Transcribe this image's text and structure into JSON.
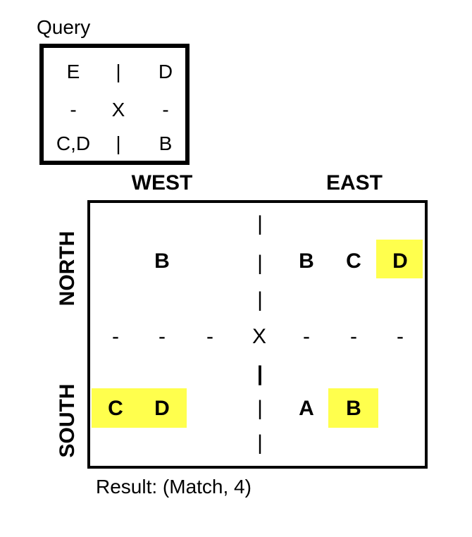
{
  "query": {
    "title": "Query",
    "rows": [
      [
        "E",
        "|",
        "D"
      ],
      [
        "-",
        "X",
        "-"
      ],
      [
        "C,D",
        "|",
        "B"
      ]
    ]
  },
  "board": {
    "west_label": "WEST",
    "east_label": "EAST",
    "north_label": "NORTH",
    "south_label": "SOUTH",
    "north_row": {
      "west": [
        "B"
      ],
      "east": [
        "B",
        "C",
        "D"
      ]
    },
    "middle_row": [
      "-",
      "-",
      "-",
      "X",
      "-",
      "-",
      "-"
    ],
    "south_row": {
      "west": [
        "C",
        "D"
      ],
      "east": [
        "A",
        "B"
      ]
    },
    "divider_marks": [
      "|",
      "|",
      "|",
      "|",
      "|",
      "|"
    ],
    "highlight_color": "#ffff4d",
    "highlighted_cells": [
      "north-east D",
      "south-west C",
      "south-west D",
      "south-east B"
    ]
  },
  "result": {
    "text": "Result: (Match, 4)"
  }
}
